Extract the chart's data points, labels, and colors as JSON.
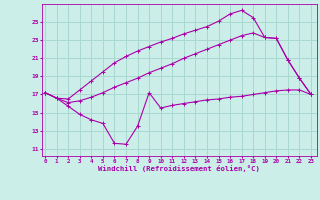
{
  "xlabel": "Windchill (Refroidissement éolien,°C)",
  "bg_color": "#cceee8",
  "grid_color": "#a8d8d0",
  "line_color": "#aa00aa",
  "x_ticks": [
    0,
    1,
    2,
    3,
    4,
    5,
    6,
    7,
    8,
    9,
    10,
    11,
    12,
    13,
    14,
    15,
    16,
    17,
    18,
    19,
    20,
    21,
    22,
    23
  ],
  "y_ticks": [
    11,
    13,
    15,
    17,
    19,
    21,
    23,
    25
  ],
  "ylim": [
    10.2,
    27.0
  ],
  "xlim": [
    -0.3,
    23.5
  ],
  "line1_x": [
    0,
    1,
    2,
    3,
    4,
    5,
    6,
    7,
    8,
    9,
    10,
    11,
    12,
    13,
    14,
    15,
    16,
    17,
    18,
    19,
    20,
    21,
    22,
    23
  ],
  "line1_y": [
    17.2,
    16.6,
    16.5,
    17.5,
    18.5,
    19.5,
    20.5,
    21.2,
    21.8,
    22.3,
    22.8,
    23.2,
    23.7,
    24.1,
    24.5,
    25.1,
    25.9,
    26.3,
    25.5,
    23.3,
    23.2,
    20.8,
    18.8,
    17.0
  ],
  "line2_x": [
    0,
    1,
    2,
    3,
    4,
    5,
    6,
    7,
    8,
    9,
    10,
    11,
    12,
    13,
    14,
    15,
    16,
    17,
    18,
    19,
    20,
    21,
    22,
    23
  ],
  "line2_y": [
    17.2,
    16.6,
    16.1,
    16.3,
    16.7,
    17.2,
    17.8,
    18.3,
    18.8,
    19.4,
    19.9,
    20.4,
    21.0,
    21.5,
    22.0,
    22.5,
    23.0,
    23.5,
    23.8,
    23.3,
    23.2,
    20.8,
    18.8,
    17.0
  ],
  "line3_x": [
    0,
    1,
    2,
    3,
    4,
    5,
    6,
    7,
    8,
    9,
    10,
    11,
    12,
    13,
    14,
    15,
    16,
    17,
    18,
    19,
    20,
    21,
    22,
    23
  ],
  "line3_y": [
    17.2,
    16.6,
    15.7,
    14.8,
    14.2,
    13.8,
    11.6,
    11.5,
    13.5,
    17.2,
    15.5,
    15.8,
    16.0,
    16.2,
    16.4,
    16.5,
    16.7,
    16.8,
    17.0,
    17.2,
    17.4,
    17.5,
    17.5,
    17.0
  ]
}
